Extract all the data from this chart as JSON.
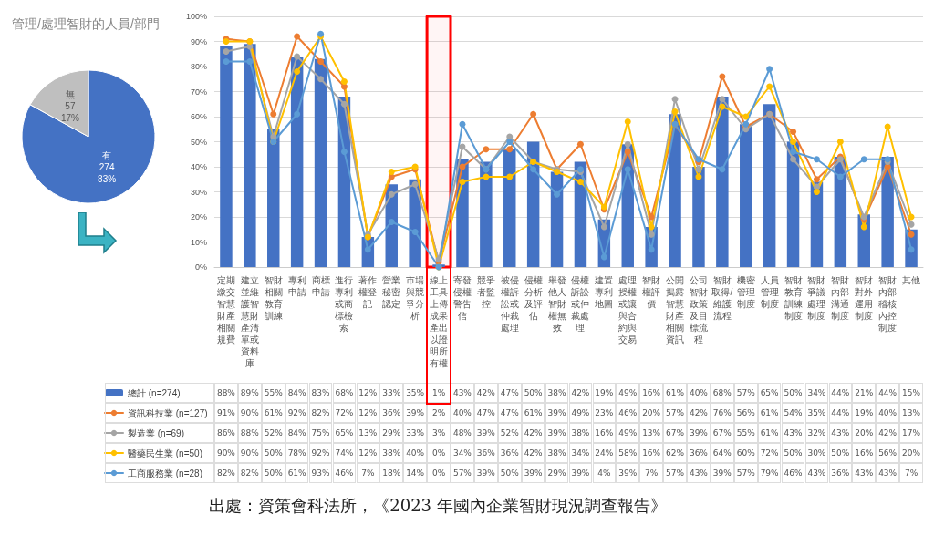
{
  "chart_data": [
    {
      "type": "pie",
      "title": "管理/處理智財的人員/部門",
      "categories": [
        "有",
        "無"
      ],
      "values": [
        83,
        17
      ],
      "colors": [
        "#4472c4",
        "#bfbfbf"
      ],
      "value_labels": [
        "274\n83%",
        "57\n17%"
      ]
    },
    {
      "type": "bar",
      "categories": [
        "定期繳交智慧財產相關規費",
        "建立並維護智慧財產清單或資料庫",
        "智財相關教育訓練",
        "專利申請",
        "商標申請",
        "進行專利或商標檢索",
        "著作權登記",
        "營業秘密認定",
        "市場與競爭分析",
        "線上工具上傳成果產出以證明所有權",
        "寄發侵權警告信",
        "競爭者監控",
        "被侵權訴訟或仲裁處理",
        "侵權分析及評估",
        "舉發他人智財權無效",
        "侵權訴訟或仲裁處理",
        "建置專利地圖",
        "處理授權或讓與合約與交易",
        "智財權評價",
        "公開揭露智慧財產相關資訊",
        "公司智財政策及目標流程",
        "智財取得/維護流程",
        "機密管理制度",
        "人員管理制度",
        "智財教育訓練制度",
        "智財爭議處理制度",
        "智財內部溝通制度",
        "智財對外運用制度",
        "智財內部稽核內控制度",
        "其他"
      ],
      "series": [
        {
          "name": "總計 (n=274)",
          "type": "bar",
          "color": "#4472c4",
          "values": [
            88,
            89,
            55,
            84,
            83,
            68,
            12,
            33,
            35,
            1,
            43,
            42,
            47,
            50,
            38,
            42,
            19,
            49,
            16,
            61,
            40,
            68,
            57,
            65,
            50,
            34,
            44,
            21,
            44,
            15
          ],
          "value_labels": [
            "88%",
            "89%",
            "55%",
            "84%",
            "83%",
            "68%",
            "12%",
            "33%",
            "35%",
            "1%",
            "43%",
            "42%",
            "47%",
            "50%",
            "38%",
            "42%",
            "19%",
            "49%",
            "16%",
            "61%",
            "40%",
            "68%",
            "57%",
            "65%",
            "50%",
            "34%",
            "44%",
            "21%",
            "44%",
            "15%"
          ]
        },
        {
          "name": "資訊科技業 (n=127)",
          "type": "line",
          "color": "#ed7d31",
          "values": [
            91,
            90,
            61,
            92,
            82,
            72,
            12,
            36,
            39,
            2,
            40,
            47,
            47,
            61,
            39,
            49,
            23,
            46,
            20,
            57,
            42,
            76,
            56,
            61,
            54,
            35,
            44,
            19,
            40,
            13
          ],
          "value_labels": [
            "91%",
            "90%",
            "61%",
            "92%",
            "82%",
            "72%",
            "12%",
            "36%",
            "39%",
            "2%",
            "40%",
            "47%",
            "47%",
            "61%",
            "39%",
            "49%",
            "23%",
            "46%",
            "20%",
            "57%",
            "42%",
            "76%",
            "56%",
            "61%",
            "54%",
            "35%",
            "44%",
            "19%",
            "40%",
            "13%"
          ]
        },
        {
          "name": "製造業 (n=69)",
          "type": "line",
          "color": "#a5a5a5",
          "values": [
            86,
            88,
            52,
            84,
            75,
            65,
            13,
            29,
            33,
            3,
            48,
            39,
            52,
            42,
            39,
            38,
            16,
            49,
            13,
            67,
            39,
            67,
            55,
            61,
            43,
            32,
            43,
            20,
            42,
            17
          ],
          "value_labels": [
            "86%",
            "88%",
            "52%",
            "84%",
            "75%",
            "65%",
            "13%",
            "29%",
            "33%",
            "3%",
            "48%",
            "39%",
            "52%",
            "42%",
            "39%",
            "38%",
            "16%",
            "49%",
            "13%",
            "67%",
            "39%",
            "67%",
            "55%",
            "61%",
            "43%",
            "32%",
            "43%",
            "20%",
            "42%",
            "17%"
          ]
        },
        {
          "name": "醫藥民生業 (n=50)",
          "type": "line",
          "color": "#ffc000",
          "values": [
            90,
            90,
            50,
            78,
            92,
            74,
            12,
            38,
            40,
            0,
            34,
            36,
            36,
            42,
            38,
            34,
            24,
            58,
            16,
            62,
            36,
            64,
            60,
            72,
            50,
            30,
            50,
            16,
            56,
            20
          ],
          "value_labels": [
            "90%",
            "90%",
            "50%",
            "78%",
            "92%",
            "74%",
            "12%",
            "38%",
            "40%",
            "0%",
            "34%",
            "36%",
            "36%",
            "42%",
            "38%",
            "34%",
            "24%",
            "58%",
            "16%",
            "62%",
            "36%",
            "64%",
            "60%",
            "72%",
            "50%",
            "30%",
            "50%",
            "16%",
            "56%",
            "20%"
          ]
        },
        {
          "name": "工商服務業 (n=28)",
          "type": "line",
          "color": "#5b9bd5",
          "values": [
            82,
            82,
            50,
            61,
            93,
            46,
            7,
            18,
            14,
            0,
            57,
            39,
            50,
            39,
            29,
            39,
            4,
            39,
            7,
            57,
            43,
            39,
            57,
            79,
            46,
            43,
            36,
            43,
            43,
            7
          ],
          "value_labels": [
            "82%",
            "82%",
            "50%",
            "61%",
            "93%",
            "46%",
            "7%",
            "18%",
            "14%",
            "0%",
            "57%",
            "39%",
            "50%",
            "39%",
            "29%",
            "39%",
            "4%",
            "39%",
            "7%",
            "57%",
            "43%",
            "39%",
            "57%",
            "79%",
            "46%",
            "43%",
            "36%",
            "43%",
            "43%",
            "7%"
          ]
        }
      ],
      "ylim": [
        0,
        100
      ],
      "yticks": [
        {
          "value": 0,
          "label": "0%"
        },
        {
          "value": 10,
          "label": "10%"
        },
        {
          "value": 20,
          "label": "20%"
        },
        {
          "value": 30,
          "label": "30%"
        },
        {
          "value": 40,
          "label": "40%"
        },
        {
          "value": 50,
          "label": "50%"
        },
        {
          "value": 60,
          "label": "60%"
        },
        {
          "value": 70,
          "label": "70%"
        },
        {
          "value": 80,
          "label": "80%"
        },
        {
          "value": 90,
          "label": "90%"
        },
        {
          "value": 100,
          "label": "100%"
        }
      ],
      "grid": "y",
      "legend": "bottom left",
      "marker": "circle",
      "bands": [
        {
          "axis": "x",
          "from": "線上工具上傳成果產出以證明所有權",
          "to": "線上工具上傳成果產出以證明所有權",
          "color": "#ff0000"
        }
      ],
      "annotations": [
        "出處：資策會科法所，《2023 年國內企業智財現況調查報告》"
      ]
    }
  ]
}
